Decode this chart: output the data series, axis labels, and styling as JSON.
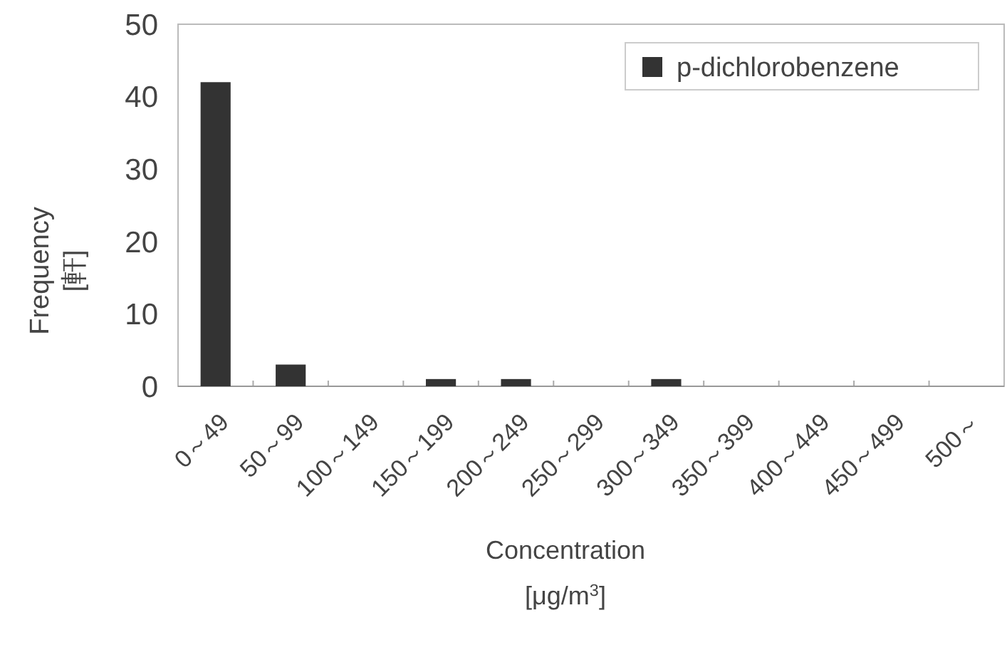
{
  "chart_data": {
    "type": "bar",
    "xlabel": "Concentration\n[μg/m$^{3}$]",
    "ylabel": "Frequency\n[軒]",
    "categories": [
      "0～49",
      "50～99",
      "100～149",
      "150～199",
      "200～249",
      "250～299",
      "300～349",
      "350～399",
      "400～449",
      "450～499",
      "500～"
    ],
    "series": [
      {
        "name": "p-dichlorobenzene",
        "color": "#333333",
        "values": [
          42,
          3,
          0,
          1,
          1,
          0,
          1,
          0,
          0,
          0,
          0
        ]
      }
    ],
    "ylim": [
      0,
      50
    ],
    "yticks": [
      0,
      10,
      20,
      30,
      40,
      50
    ],
    "legend": "top right"
  }
}
